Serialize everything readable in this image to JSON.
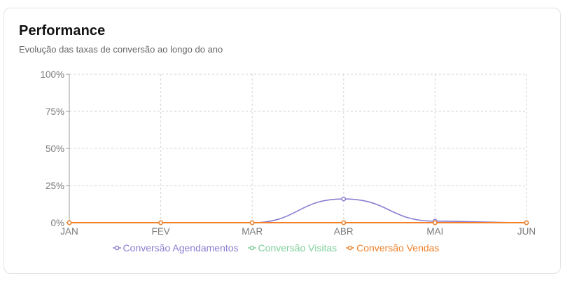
{
  "header": {
    "title": "Performance",
    "subtitle": "Evolução das taxas de conversão ao longo do ano"
  },
  "chart_data": {
    "type": "line",
    "categories": [
      "JAN",
      "FEV",
      "MAR",
      "ABR",
      "MAI",
      "JUN"
    ],
    "y_ticks": [
      "0%",
      "25%",
      "50%",
      "75%",
      "100%"
    ],
    "ylim": [
      0,
      100
    ],
    "grid": true,
    "legend_position": "bottom",
    "series": [
      {
        "name": "Conversão Agendamentos",
        "color": "#8a7fd1",
        "values": [
          0,
          0,
          0,
          16,
          1,
          0
        ],
        "smooth": true
      },
      {
        "name": "Conversão Visitas",
        "color": "#7fcf9a",
        "values": [
          0,
          0,
          0,
          0,
          0,
          0
        ]
      },
      {
        "name": "Conversão Vendas",
        "color": "#f0812a",
        "values": [
          0,
          0,
          0,
          0,
          0,
          0
        ]
      }
    ]
  }
}
